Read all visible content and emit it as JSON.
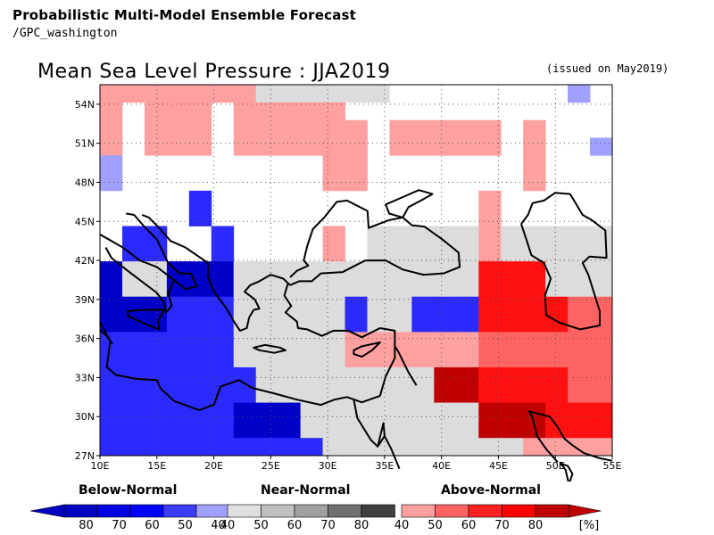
{
  "header": {
    "title": "Probabilistic Multi-Model Ensemble Forecast",
    "subtitle": "/GPC_washington"
  },
  "map": {
    "title": "Mean Sea Level Pressure : JJA2019",
    "issued": "(issued on May2019)",
    "lon_labels": [
      "10E",
      "15E",
      "20E",
      "25E",
      "30E",
      "35E",
      "40E",
      "45E",
      "50E",
      "55E"
    ],
    "lat_labels": [
      "54N",
      "51N",
      "48N",
      "45N",
      "42N",
      "39N",
      "36N",
      "33N",
      "30N",
      "27N"
    ],
    "lon_range": [
      10,
      55
    ],
    "lat_range": [
      27,
      55.5
    ],
    "cell_lon": 2.5,
    "cell_lat": 2.5,
    "cell_codes": {
      "W": "white",
      "G": "near-normal (grey)",
      "a": "above-normal 40-50",
      "b": "above-normal 50-60",
      "c": "above-normal 60-70",
      "d": "above-normal 70-80",
      "p": "below-normal 40-50",
      "q": "below-normal 50-60",
      "r": "below-normal 60-70",
      "s": "below-normal 70-80"
    },
    "cells_rows_north_to_south": [
      "aaaaaaaGGGGGGWWWWWWWWpW",
      "aWaaaWaaaaaWWWWWWWWWWWW",
      "aWaaaWaaaaaaWaaaaaWaWWW",
      "aWaaaWaaaaaaWaaaaaWaWWp",
      "pWWWWWWWWWaaWWWWWWWaWWW",
      "pWWWWWWWWWaaWWWWWWWaWWW",
      "WWWWrWWWWWWWWWWWWaWWWWW",
      "WWWWrWWWWWWWWWWWWaWWWWW",
      "WrrWWrWWWWaWGGGGGaGGGGG",
      "WrrWWrWWWWaWGGGGGaGGGGG",
      "sGGsssGGGGGGGGGGGcccGGG",
      "sGGsssGGGGGGGGGGGcccGGG",
      "sssrrrGGGGGrGGrrrccccbb",
      "sssrrrGGGGGrGGrrrccccbb",
      "rrrrrrGGGGGaaaaaabbbbbb",
      "rrrrrrGGGGGaaaaaabbbbbb",
      "rrrrrrrGGGGGGGGddccccbb",
      "rrrrrrrGGGGGGGGddccccbb",
      "rrrrrrsssGGGGGGGGdddccc",
      "rrrrrrsssGGGGGGGGdddccc",
      "rrrrrrrrrrGGGGGGGGGaaaa"
    ],
    "coastline_paths": [
      "M10,44 L12,43 L13.5,42 L15,41.5 L16.5,40.5 L17.5,39.8 L18.5,40 L18,41 L17,41 L16,41.8 L15.5,42.7 L15,43.6 L14,44.5 L13,45.5 L12.3,45.6",
      "M16.5,40.5 L16,39.5 L16.3,38.5 L15.8,38 L15.6,38.8 L15,39.5 L13.5,40.5 L12.3,41.3 L11,42.2 L10.5,43",
      "M12.4,38.1 L13.8,38.2 L15.6,38.2 L15.1,37.3 L15.2,36.7 L14.3,37 L12.5,37.7 Z",
      "M13.7,45.5 L14.3,45.3 L15.2,44.5 L16.2,43.5 L17.5,43 L18.5,42.4 L19.5,41.8 L19.5,40.7 L20,39.6 L20.7,38.8 L21.2,38.2 L21.7,37.4 L22.3,36.6 L22.9,36.8 L23.1,37.6 L23.5,38.2 L24,38.3 L23.6,39 L22.7,39.6 L23.2,40.1 L24,40.4 L25,40.9 L26.1,40.6 L26.7,40.1",
      "M23.5,35.3 L24.5,35.5 L25.8,35.3 L26.3,35.1 L25.3,34.9 L24,35.1 Z",
      "M26.5,40.2 L26.2,39.3 L26.8,38.5 L26.3,38 L27.3,37.3 L27.4,36.8 L28.2,36.7 L29.5,36.2 L30.5,36.6 L31.8,36.6 L33,36.1 L34.6,36.8 L35.9,36.6 L35.9,35.9 L35.9,34.5 L35.1,33.1 L34.6,31.6 L33,31.1 L31.7,31.5 L30.6,31.3 L29.4,30.9 L27.3,31.3 L25.2,31.8 L23.4,32.2 L22.2,32.8 L20.6,32.3 L20,30.9 L18.7,30.5 L16.5,31.2 L15.3,32.2 L15,32.8 L13.2,32.9 L11.4,33.2 L10.6,33.8 L10.9,35.8 L10.3,36.8 L10,37.2",
      "M26.7,40.1 L27.5,40.4 L28.6,40.4 L29.4,41 L31.3,41.1 L33.3,42 L35.1,42 L36.6,41.3 L38.4,40.9 L40.2,41 L41.6,41.5 L41.5,42.6 L40.1,43.6 L38.5,44.6 L37.4,44.7 L36.6,45.3 L35.4,45.1 L33.6,44.5 L33.5,45.8 L31.7,46.6 L30.8,46.5 L29.7,45.3 L28.7,44.4 L28.2,43.1 L27.9,42 L28.3,41.6 L27.3,41.2 L26.7,40.7",
      "M36.6,45.3 L37.1,46.1 L38.2,46.6 L39.2,47.1 L38,47.4 L36.7,46.9 L35.1,46.3 L35.4,45.6 L36.6,45.3",
      "M32.3,35.1 L33,35.4 L34.6,35.7 L33.9,35.1 L33,34.6 L32.3,34.8 Z",
      "M47,44.8 L47.5,43.5 L47.9,42.4 L49,41.8 L49.6,40.6 L49.1,39.3 L49.2,37.8 L50.4,37.2 L52.2,36.7 L53.9,37 L53.9,38.1 L53.4,39.5 L52.9,40.9 L52.4,41.8 L53,42.3 L54.5,42.2 L54.4,44.3 L53.2,45.1 L52.4,45.5 L51.3,47.1 L50,47.2 L49,46.6 L48,46.4 L47.6,45.5 L47,44.8",
      "M10,36.6 L10.5,36.3 L11.1,35.6",
      "M35.9,35.4 L36.2,35 L37.1,33.4 L37.8,32.4",
      "M32.3,31.3 L32.6,29.9 L33.8,28.2 L34.4,27.7 L35,28.5 L35.6,27.5 L36.3,26",
      "M34.4,27.7 L34.9,29.5 L35,28.5",
      "M48,29.9 L48.4,28.5 L49.2,27.5 L50.2,26.5",
      "M48,29.9 L47.7,30.4 L48.6,30.2 L49.5,30 L50.2,29.2 L50.8,28.3 L51.5,27.8 L52.5,27.2 L53.9,26.8 L55,26.6",
      "M50.5,26.4 L50.9,25.9 L51.2,24.8 L51.5,25.6 L51.1,26.2 Z"
    ]
  },
  "legend": {
    "below_label": "Below-Normal",
    "near_label": "Near-Normal",
    "above_label": "Above-Normal",
    "below_ticks": [
      "80",
      "70",
      "60",
      "50",
      "40"
    ],
    "near_ticks": [
      "40",
      "50",
      "60",
      "70",
      "80"
    ],
    "above_ticks": [
      "40",
      "50",
      "60",
      "70",
      "80"
    ],
    "unit": "[%]",
    "below_colors": [
      "#0000c0",
      "#0000e0",
      "#0000ff",
      "#3c3cff",
      "#a0a0ff"
    ],
    "near_colors": [
      "#e0e0e0",
      "#c0c0c0",
      "#a0a0a0",
      "#707070",
      "#404040"
    ],
    "above_colors": [
      "#ffa0a0",
      "#ff6464",
      "#ff2020",
      "#ff0000",
      "#c00000"
    ]
  },
  "palette": {
    "W": "#ffffff",
    "G": "#dcdcdc",
    "a": "#ffa0a0",
    "b": "#ff6464",
    "c": "#ff1010",
    "d": "#c00000",
    "p": "#a0a0ff",
    "q": "#6464ff",
    "r": "#2a2aff",
    "s": "#0000c8"
  }
}
